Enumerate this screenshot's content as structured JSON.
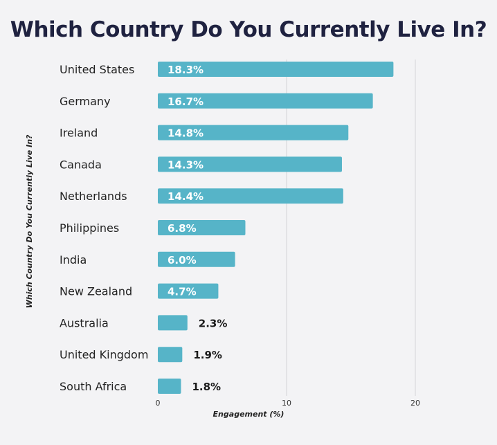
{
  "chart_data": {
    "type": "bar",
    "orientation": "horizontal",
    "title": "Which Country Do You Currently Live In?",
    "xlabel": "Engagement (%)",
    "ylabel": "Which Country Do You Currently Live In?",
    "categories": [
      "United States",
      "Germany",
      "Ireland",
      "Canada",
      "Netherlands",
      "Philippines",
      "India",
      "New Zealand",
      "Australia",
      "United Kingdom",
      "South Africa"
    ],
    "values": [
      18.3,
      16.7,
      14.8,
      14.3,
      14.4,
      6.8,
      6.0,
      4.7,
      2.3,
      1.9,
      1.8
    ],
    "value_labels": [
      "18.3%",
      "16.7%",
      "14.8%",
      "14.3%",
      "14.4%",
      "6.8%",
      "6.0%",
      "4.7%",
      "2.3%",
      "1.9%",
      "1.8%"
    ],
    "xlim": [
      0,
      20
    ],
    "xticks": [
      0,
      10,
      20
    ],
    "grid": true,
    "bar_color": "#56b4c8",
    "label_inside_color": "#ffffff",
    "label_outside_color": "#1a1a1a"
  }
}
